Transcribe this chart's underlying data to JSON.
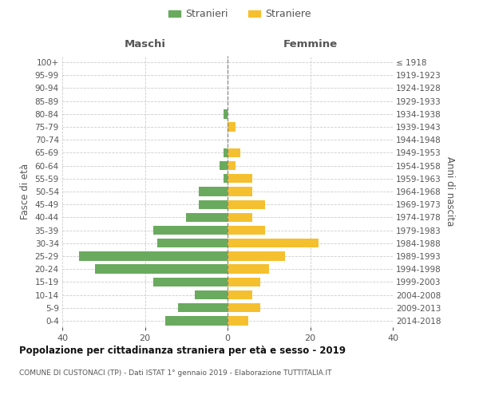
{
  "age_groups": [
    "0-4",
    "5-9",
    "10-14",
    "15-19",
    "20-24",
    "25-29",
    "30-34",
    "35-39",
    "40-44",
    "45-49",
    "50-54",
    "55-59",
    "60-64",
    "65-69",
    "70-74",
    "75-79",
    "80-84",
    "85-89",
    "90-94",
    "95-99",
    "100+"
  ],
  "birth_years": [
    "2014-2018",
    "2009-2013",
    "2004-2008",
    "1999-2003",
    "1994-1998",
    "1989-1993",
    "1984-1988",
    "1979-1983",
    "1974-1978",
    "1969-1973",
    "1964-1968",
    "1959-1963",
    "1954-1958",
    "1949-1953",
    "1944-1948",
    "1939-1943",
    "1934-1938",
    "1929-1933",
    "1924-1928",
    "1919-1923",
    "≤ 1918"
  ],
  "maschi": [
    15,
    12,
    8,
    18,
    32,
    36,
    17,
    18,
    10,
    7,
    7,
    1,
    2,
    1,
    0,
    0,
    1,
    0,
    0,
    0,
    0
  ],
  "femmine": [
    5,
    8,
    6,
    8,
    10,
    14,
    22,
    9,
    6,
    9,
    6,
    6,
    2,
    3,
    0,
    2,
    0,
    0,
    0,
    0,
    0
  ],
  "color_maschi": "#6aaa5e",
  "color_femmine": "#f5c02f",
  "title": "Popolazione per cittadinanza straniera per età e sesso - 2019",
  "subtitle": "COMUNE DI CUSTONACI (TP) - Dati ISTAT 1° gennaio 2019 - Elaborazione TUTTITALIA.IT",
  "header_left": "Maschi",
  "header_right": "Femmine",
  "ylabel_left": "Fasce di età",
  "ylabel_right": "Anni di nascita",
  "legend_maschi": "Stranieri",
  "legend_femmine": "Straniere",
  "xlim": 40,
  "bg_color": "#ffffff",
  "grid_color": "#cccccc",
  "text_color": "#555555",
  "title_color": "#111111"
}
